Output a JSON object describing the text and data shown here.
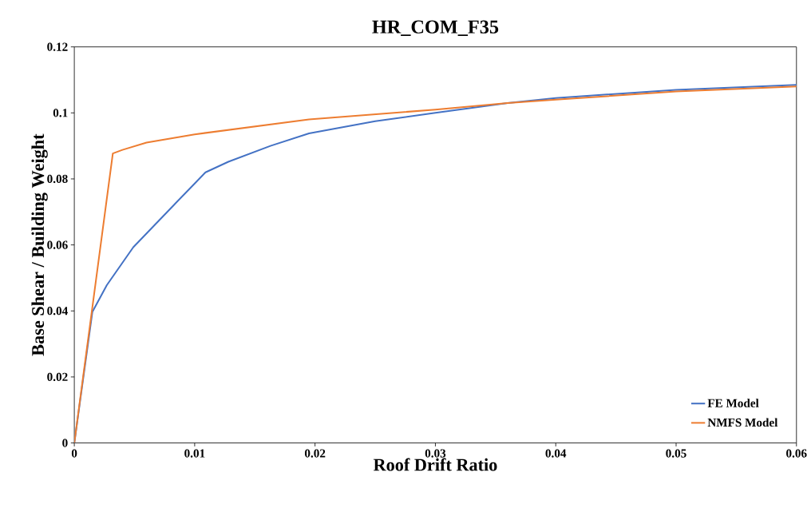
{
  "chart_data": {
    "type": "line",
    "title": "HR_COM_F35",
    "xlabel": "Roof Drift Ratio",
    "ylabel": "Base Shear / Building Weight",
    "xlim": [
      0,
      0.06
    ],
    "ylim": [
      0,
      0.12
    ],
    "xticks": [
      0,
      0.01,
      0.02,
      0.03,
      0.04,
      0.05,
      0.06
    ],
    "yticks": [
      0,
      0.02,
      0.04,
      0.06,
      0.08,
      0.1,
      0.12
    ],
    "grid": false,
    "legend": "bottom right",
    "marker": "none",
    "line_style": "solid",
    "series": [
      {
        "name": "FE Model",
        "color": "#4472c4",
        "x": [
          0,
          0.0015,
          0.0027,
          0.0049,
          0.0083,
          0.0109,
          0.0128,
          0.0163,
          0.0195,
          0.025,
          0.03,
          0.036,
          0.04,
          0.05,
          0.06
        ],
        "values": [
          0,
          0.0397,
          0.0478,
          0.0593,
          0.0722,
          0.082,
          0.0852,
          0.09,
          0.0938,
          0.0975,
          0.1,
          0.103,
          0.1045,
          0.107,
          0.1085
        ]
      },
      {
        "name": "NMFS Model",
        "color": "#ed7d31",
        "x": [
          0,
          0.0032,
          0.004,
          0.006,
          0.01,
          0.0195,
          0.03,
          0.036,
          0.04,
          0.05,
          0.06
        ],
        "values": [
          0,
          0.0877,
          0.0888,
          0.091,
          0.0935,
          0.098,
          0.101,
          0.103,
          0.104,
          0.1065,
          0.108
        ]
      }
    ]
  }
}
